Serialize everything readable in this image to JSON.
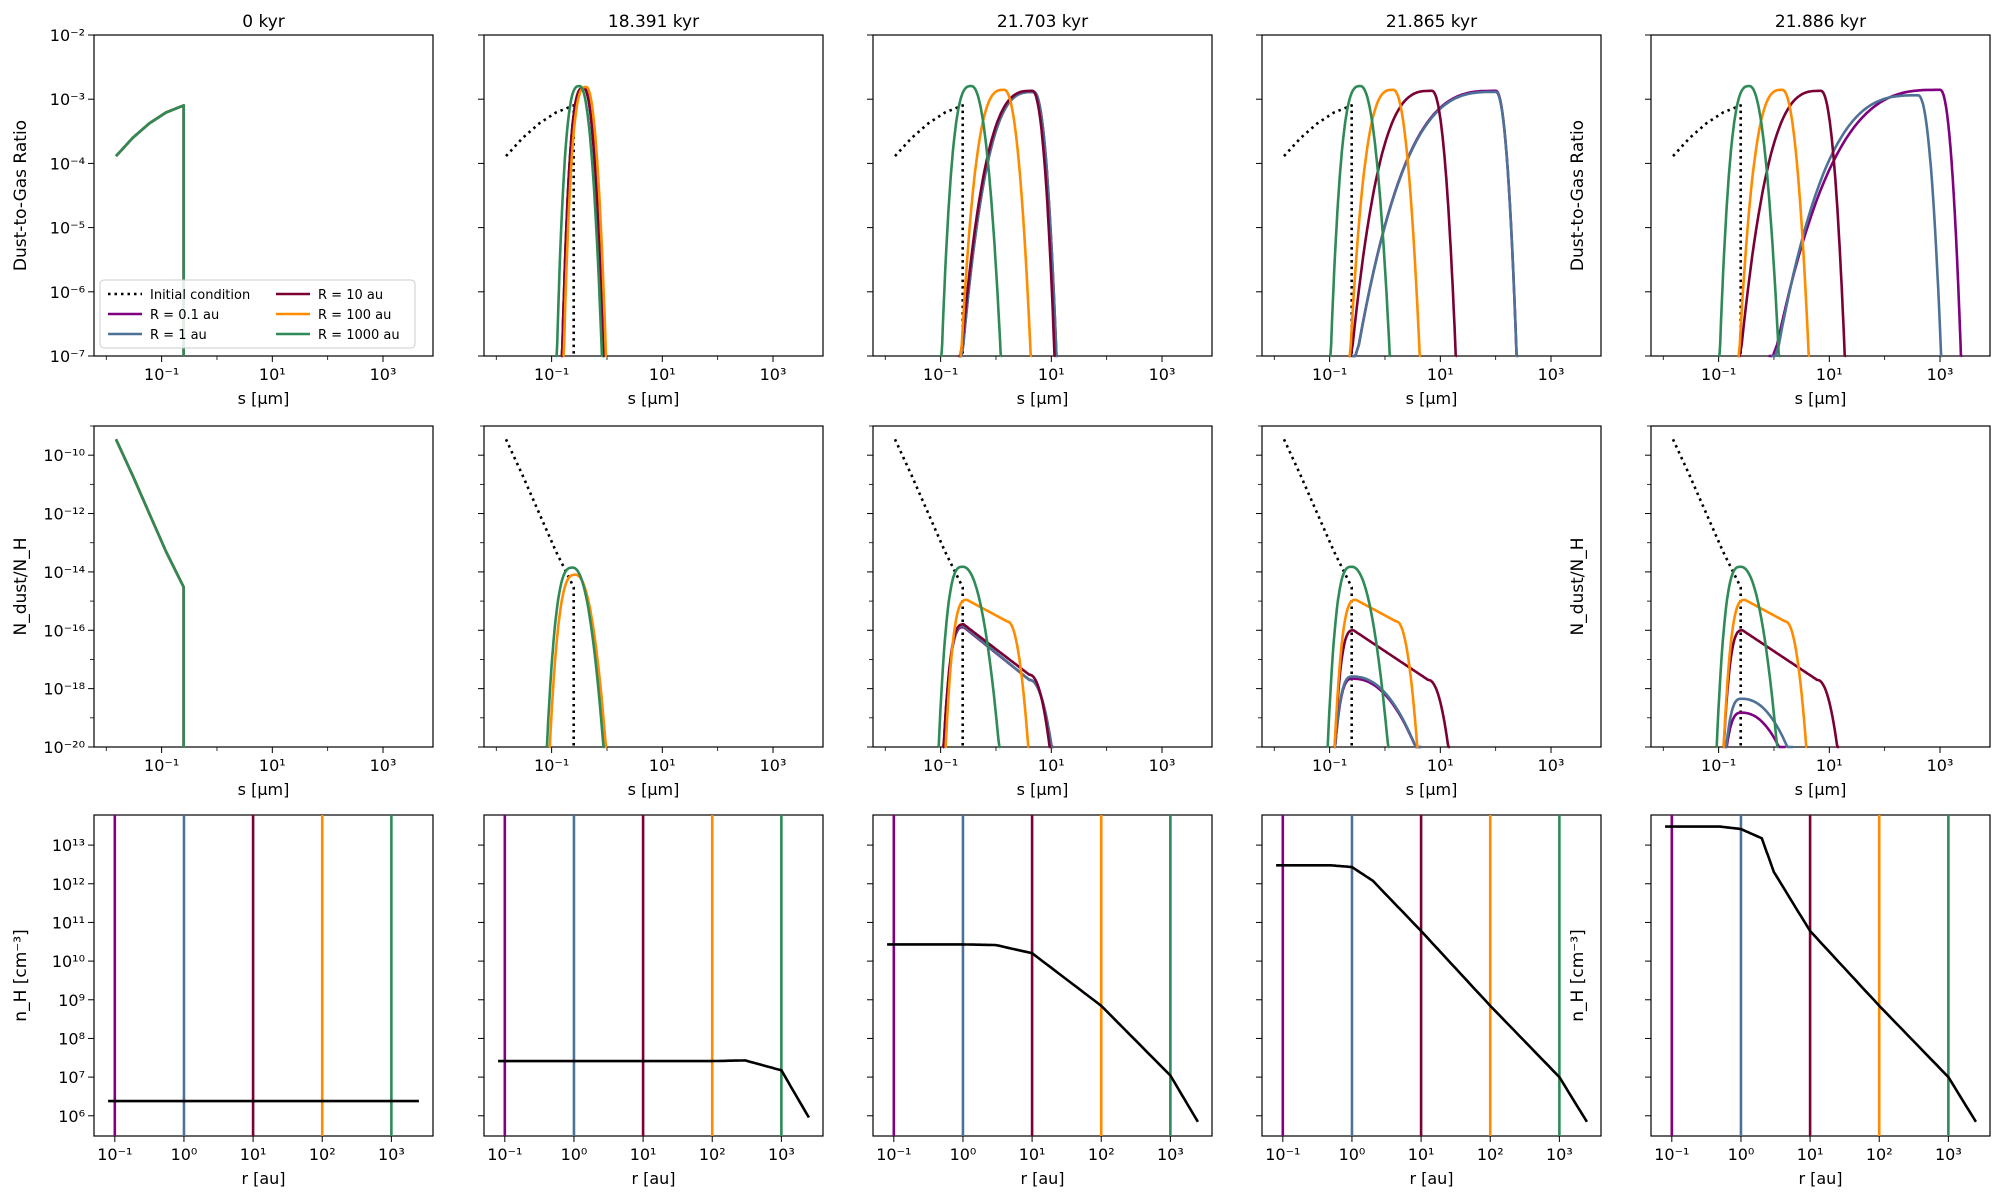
{
  "colors": {
    "r0_1": "#800080",
    "r1": "#4e7196",
    "r10": "#7b0034",
    "r100": "#ff8c00",
    "r1000": "#2e8b57",
    "initial": "#000000",
    "density": "#000000"
  },
  "chart_data": {
    "type": "line",
    "panel_titles": [
      "0 kyr",
      "18.391 kyr",
      "21.703 kyr",
      "21.865 kyr",
      "21.886 kyr"
    ],
    "rows": [
      {
        "ylabel": "Dust-to-Gas Ratio",
        "xlabel": "s [μm]",
        "xscale": "log",
        "yscale": "log",
        "xlim": [
          0.006,
          8000
        ],
        "ylim": [
          1e-07,
          0.01
        ],
        "xticks": [
          "10⁻¹",
          "10¹",
          "10³"
        ],
        "yticks": [
          "10⁻⁷",
          "10⁻⁶",
          "10⁻⁵",
          "10⁻⁴",
          "10⁻³",
          "10⁻²"
        ]
      },
      {
        "ylabel": "N_dust/N_H",
        "xlabel": "s [μm]",
        "xscale": "log",
        "yscale": "log",
        "xlim": [
          0.006,
          8000
        ],
        "ylim": [
          1e-20,
          1e-09
        ],
        "xticks": [
          "10⁻¹",
          "10¹",
          "10³"
        ],
        "yticks": [
          "10⁻²⁰",
          "10⁻¹⁸",
          "10⁻¹⁶",
          "10⁻¹⁴",
          "10⁻¹²",
          "10⁻¹⁰"
        ]
      },
      {
        "ylabel": "n_H [cm⁻³]",
        "xlabel": "r [au]",
        "xscale": "log",
        "yscale": "log",
        "xlim": [
          0.05,
          4000
        ],
        "ylim": [
          300000.0,
          60000000000000.0
        ],
        "xticks": [
          "10⁻¹",
          "10⁰",
          "10¹",
          "10²",
          "10³"
        ],
        "yticks": [
          "10⁶",
          "10⁷",
          "10⁸",
          "10⁹",
          "10¹⁰",
          "10¹¹",
          "10¹²",
          "10¹³"
        ]
      }
    ],
    "legend": {
      "placement": "lower-left of top-left panel",
      "entries": [
        {
          "label": "Initial condition",
          "style": "dotted",
          "color": "#000000"
        },
        {
          "label": "R = 0.1 au",
          "color": "#800080"
        },
        {
          "label": "R = 1 au",
          "color": "#4e7196"
        },
        {
          "label": "R = 10 au",
          "color": "#7b0034"
        },
        {
          "label": "R = 100 au",
          "color": "#ff8c00"
        },
        {
          "label": "R = 1000 au",
          "color": "#2e8b57"
        }
      ]
    },
    "radii_au": [
      0.1,
      1,
      10,
      100,
      1000
    ],
    "initial_condition": {
      "dust_to_gas": {
        "s_um": [
          0.015,
          0.03,
          0.06,
          0.12,
          0.2,
          0.25
        ],
        "values": [
          0.00013,
          0.00025,
          0.00042,
          0.00062,
          0.00074,
          0.0008
        ]
      },
      "number_ratio": {
        "s_um": [
          0.015,
          0.03,
          0.06,
          0.12,
          0.25
        ],
        "values": [
          3.5e-10,
          2e-11,
          1e-12,
          5e-14,
          3e-15
        ]
      },
      "cutoff_s_um": 0.25
    },
    "snapshots": [
      {
        "time": "0 kyr",
        "dust_to_gas": [
          {
            "radius": "R = 0.1 au",
            "peak_s": 0.25,
            "peak": 0.0008,
            "left_s": 0.22,
            "right_s": 0.25
          },
          {
            "radius": "R = 1 au",
            "peak_s": 0.25,
            "peak": 0.0008,
            "left_s": 0.22,
            "right_s": 0.25
          },
          {
            "radius": "R = 10 au",
            "peak_s": 0.25,
            "peak": 0.0008,
            "left_s": 0.22,
            "right_s": 0.25
          },
          {
            "radius": "R = 100 au",
            "peak_s": 0.25,
            "peak": 0.0008,
            "left_s": 0.22,
            "right_s": 0.25
          },
          {
            "radius": "R = 1000 au",
            "peak_s": 0.25,
            "peak": 0.0008,
            "left_s": 0.22,
            "right_s": 0.25
          }
        ],
        "number_ratio": [
          {
            "radius": "R = 1000 au",
            "peak_s": 0.25,
            "peak": 3e-15
          }
        ],
        "density": {
          "r_au": [
            0.08,
            1,
            10,
            100,
            1000,
            2500
          ],
          "n_H": [
            2400000.0,
            2400000.0,
            2400000.0,
            2400000.0,
            2400000.0,
            2400000.0
          ]
        }
      },
      {
        "time": "18.391 kyr",
        "dust_to_gas": [
          {
            "radius": "R = 0.1 au",
            "peak_s": 0.38,
            "peak": 0.0015,
            "left_s": 0.15,
            "right_s": 0.9
          },
          {
            "radius": "R = 1 au",
            "peak_s": 0.38,
            "peak": 0.0015,
            "left_s": 0.15,
            "right_s": 0.9
          },
          {
            "radius": "R = 10 au",
            "peak_s": 0.38,
            "peak": 0.0015,
            "left_s": 0.15,
            "right_s": 0.9
          },
          {
            "radius": "R = 100 au",
            "peak_s": 0.42,
            "peak": 0.00155,
            "left_s": 0.16,
            "right_s": 1.0
          },
          {
            "radius": "R = 1000 au",
            "peak_s": 0.32,
            "peak": 0.0016,
            "left_s": 0.12,
            "right_s": 0.85
          }
        ],
        "number_ratio": [
          {
            "radius": "R = 100 au",
            "peak_s": 0.27,
            "peak": 8e-15,
            "left_s": 0.09,
            "right_s": 1.0
          },
          {
            "radius": "R = 1000 au",
            "peak_s": 0.24,
            "peak": 1.4e-14,
            "left_s": 0.08,
            "right_s": 0.9
          }
        ],
        "density": {
          "r_au": [
            0.08,
            1,
            10,
            100,
            300,
            1000,
            2500
          ],
          "n_H": [
            26000000.0,
            26000000.0,
            26000000.0,
            26000000.0,
            27000000.0,
            15000000.0,
            900000.0
          ]
        }
      },
      {
        "time": "21.703 kyr",
        "dust_to_gas": [
          {
            "radius": "R = 0.1 au",
            "peak_s": 4.8,
            "peak": 0.0013,
            "left_s": 0.22,
            "right_s": 13
          },
          {
            "radius": "R = 1 au",
            "peak_s": 4.8,
            "peak": 0.0013,
            "left_s": 0.22,
            "right_s": 13
          },
          {
            "radius": "R = 10 au",
            "peak_s": 4.5,
            "peak": 0.00135,
            "left_s": 0.21,
            "right_s": 12
          },
          {
            "radius": "R = 100 au",
            "peak_s": 1.4,
            "peak": 0.0014,
            "left_s": 0.22,
            "right_s": 4.5
          },
          {
            "radius": "R = 1000 au",
            "peak_s": 0.36,
            "peak": 0.0016,
            "left_s": 0.1,
            "right_s": 1.3
          }
        ],
        "number_ratio": [
          {
            "radius": "R = 0.1 au",
            "peak_s": 0.26,
            "peak": 1.3e-16,
            "shoulder": [
              4.0,
              2e-18
            ],
            "left_s": 0.11,
            "right_s": 11
          },
          {
            "radius": "R = 1 au",
            "peak_s": 0.26,
            "peak": 1.4e-16,
            "shoulder": [
              4.0,
              2e-18
            ],
            "left_s": 0.11,
            "right_s": 11
          },
          {
            "radius": "R = 10 au",
            "peak_s": 0.26,
            "peak": 1.6e-16,
            "shoulder": [
              4.0,
              3e-18
            ],
            "left_s": 0.11,
            "right_s": 10
          },
          {
            "radius": "R = 100 au",
            "peak_s": 0.3,
            "peak": 1.1e-15,
            "shoulder": [
              1.6,
              2e-16
            ],
            "left_s": 0.12,
            "right_s": 4
          },
          {
            "radius": "R = 1000 au",
            "peak_s": 0.25,
            "peak": 1.5e-14,
            "left_s": 0.09,
            "right_s": 1.2
          }
        ],
        "density": {
          "r_au": [
            0.08,
            1,
            3,
            10,
            100,
            1000,
            2500
          ],
          "n_H": [
            27000000000.0,
            27000000000.0,
            26000000000.0,
            16000000000.0,
            700000000.0,
            11000000.0,
            700000.0
          ]
        }
      },
      {
        "time": "21.865 kyr",
        "dust_to_gas": [
          {
            "radius": "R = 0.1 au",
            "peak_s": 100,
            "peak": 0.00135,
            "left_s": 0.25,
            "right_s": 250
          },
          {
            "radius": "R = 1 au",
            "peak_s": 100,
            "peak": 0.0013,
            "left_s": 0.25,
            "right_s": 250
          },
          {
            "radius": "R = 10 au",
            "peak_s": 7,
            "peak": 0.00135,
            "left_s": 0.22,
            "right_s": 20
          },
          {
            "radius": "R = 100 au",
            "peak_s": 1.4,
            "peak": 0.0014,
            "left_s": 0.22,
            "right_s": 4.5
          },
          {
            "radius": "R = 1000 au",
            "peak_s": 0.36,
            "peak": 0.0016,
            "left_s": 0.1,
            "right_s": 1.3
          }
        ],
        "number_ratio": [
          {
            "radius": "R = 0.1 au",
            "peak_s": 0.26,
            "peak": 2.2e-18,
            "left_s": 0.12,
            "right_s": 4.5
          },
          {
            "radius": "R = 1 au",
            "peak_s": 0.26,
            "peak": 2.6e-18,
            "left_s": 0.12,
            "right_s": 4.5
          },
          {
            "radius": "R = 10 au",
            "peak_s": 0.27,
            "peak": 1e-16,
            "shoulder": [
              6.0,
              2e-18
            ],
            "left_s": 0.12,
            "right_s": 15
          },
          {
            "radius": "R = 100 au",
            "peak_s": 0.3,
            "peak": 1.1e-15,
            "shoulder": [
              1.6,
              2e-16
            ],
            "left_s": 0.12,
            "right_s": 4
          },
          {
            "radius": "R = 1000 au",
            "peak_s": 0.25,
            "peak": 1.5e-14,
            "left_s": 0.09,
            "right_s": 1.2
          }
        ],
        "density": {
          "r_au": [
            0.08,
            0.5,
            1,
            2,
            10,
            100,
            1000,
            2500
          ],
          "n_H": [
            3000000000000.0,
            3000000000000.0,
            2700000000000.0,
            1200000000000.0,
            60000000000.0,
            700000000.0,
            10000000.0,
            700000.0
          ]
        }
      },
      {
        "time": "21.886 kyr",
        "dust_to_gas": [
          {
            "radius": "R = 0.1 au",
            "peak_s": 1000,
            "peak": 0.0014,
            "left_s": 0.8,
            "right_s": 2500
          },
          {
            "radius": "R = 1 au",
            "peak_s": 400,
            "peak": 0.00115,
            "left_s": 0.9,
            "right_s": 1100
          },
          {
            "radius": "R = 10 au",
            "peak_s": 7,
            "peak": 0.00135,
            "left_s": 0.22,
            "right_s": 20
          },
          {
            "radius": "R = 100 au",
            "peak_s": 1.4,
            "peak": 0.0014,
            "left_s": 0.22,
            "right_s": 4.5
          },
          {
            "radius": "R = 1000 au",
            "peak_s": 0.36,
            "peak": 0.0016,
            "left_s": 0.1,
            "right_s": 1.3
          }
        ],
        "number_ratio": [
          {
            "radius": "R = 0.1 au",
            "peak_s": 0.26,
            "peak": 1.5e-19,
            "left_s": 0.13,
            "right_s": 1.6
          },
          {
            "radius": "R = 1 au",
            "peak_s": 0.26,
            "peak": 4.5e-19,
            "left_s": 0.13,
            "right_s": 2.2
          },
          {
            "radius": "R = 10 au",
            "peak_s": 0.27,
            "peak": 1e-16,
            "shoulder": [
              6.0,
              2e-18
            ],
            "left_s": 0.12,
            "right_s": 15
          },
          {
            "radius": "R = 100 au",
            "peak_s": 0.3,
            "peak": 1.1e-15,
            "shoulder": [
              1.6,
              2e-16
            ],
            "left_s": 0.12,
            "right_s": 4
          },
          {
            "radius": "R = 1000 au",
            "peak_s": 0.25,
            "peak": 1.5e-14,
            "left_s": 0.09,
            "right_s": 1.2
          }
        ],
        "density": {
          "r_au": [
            0.08,
            0.5,
            1,
            2,
            3,
            10,
            100,
            1000,
            2500
          ],
          "n_H": [
            30000000000000.0,
            30000000000000.0,
            26000000000000.0,
            15000000000000.0,
            2000000000000.0,
            60000000000.0,
            700000000.0,
            10000000.0,
            700000.0
          ]
        }
      }
    ]
  }
}
